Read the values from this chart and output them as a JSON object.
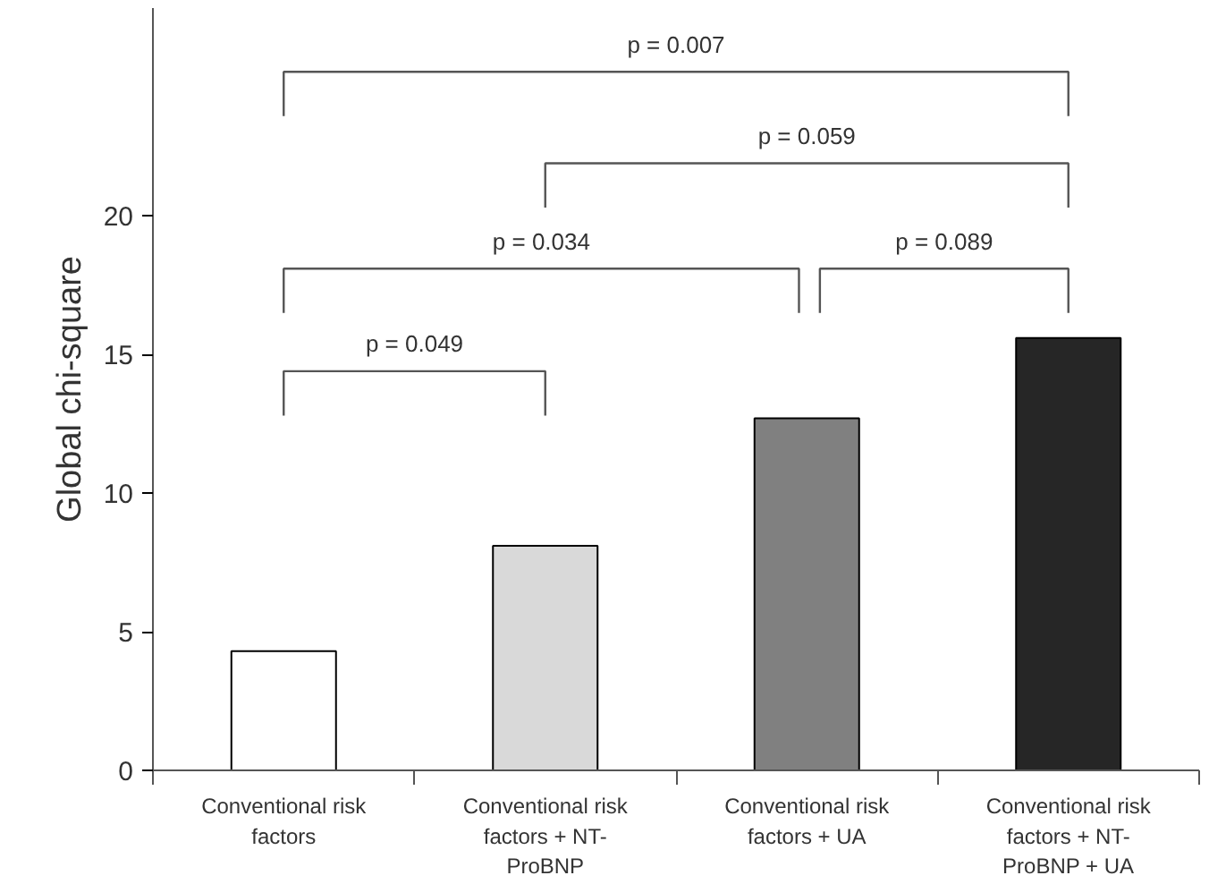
{
  "chart_data": {
    "type": "bar",
    "ylabel": "Global chi-square",
    "categories": [
      "Conventional risk factors",
      "Conventional risk factors + NT-ProBNP",
      "Conventional risk factors + UA",
      "Conventional risk factors + NT-ProBNP + UA"
    ],
    "values": [
      4.3,
      8.1,
      12.7,
      15.6
    ],
    "colors": [
      "#ffffff",
      "#d9d9d9",
      "#808080",
      "#262626"
    ],
    "ylim": [
      0,
      27.5
    ],
    "yticks": [
      0,
      5,
      10,
      15,
      20
    ],
    "grid": false,
    "annotations": [
      "p = 0.007",
      "p = 0.059",
      "p = 0.034",
      "p = 0.089",
      "p = 0.049"
    ]
  }
}
